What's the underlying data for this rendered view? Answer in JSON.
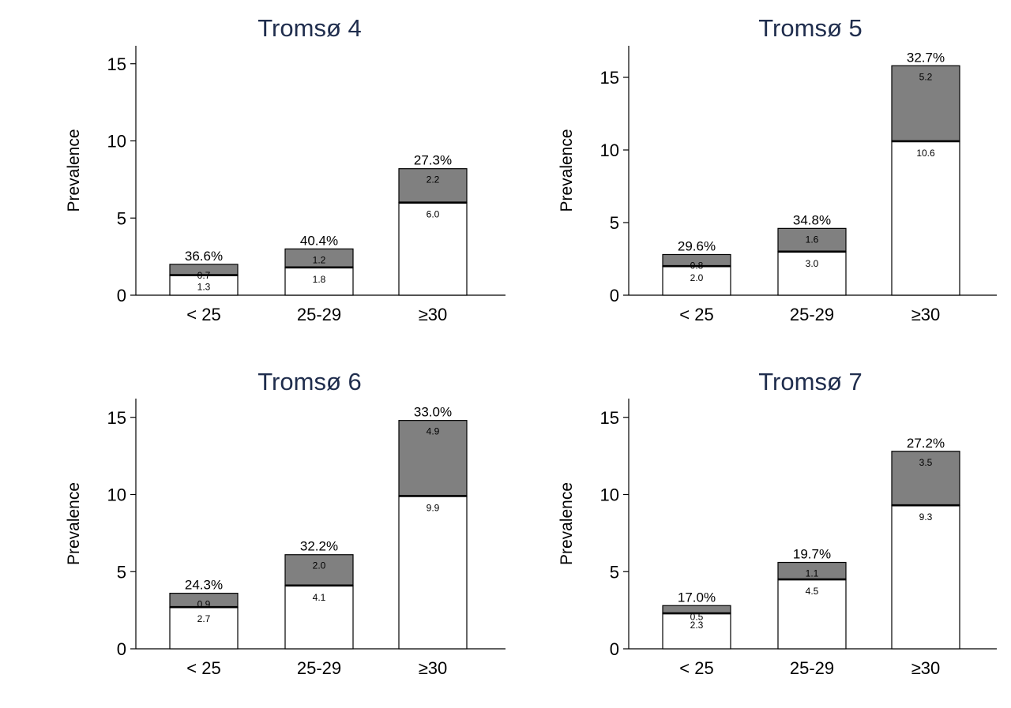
{
  "panels_colors": {
    "undiagnosed": "#808080",
    "diagnosed": "#ffffff",
    "outline": "#000000",
    "title": "#1f2d4d"
  },
  "chart_data": [
    {
      "type": "bar",
      "stacked": true,
      "title": "Tromsø 4",
      "ylabel": "Prevalence",
      "categories": [
        "< 25",
        "25-29",
        "≥30"
      ],
      "yticks": [
        0,
        5,
        10,
        15
      ],
      "ylim": [
        0,
        16.2
      ],
      "series": [
        {
          "values": [
            1.3,
            1.8,
            6.0
          ],
          "labels": [
            "1.3",
            "1.8",
            "6.0"
          ]
        },
        {
          "values": [
            0.7,
            1.2,
            2.2
          ],
          "labels": [
            "0.7",
            "1.2",
            "2.2"
          ]
        }
      ],
      "top_labels": [
        "36.6%",
        "40.4%",
        "27.3%"
      ]
    },
    {
      "type": "bar",
      "stacked": true,
      "title": "Tromsø 5",
      "ylabel": "Prevalence",
      "categories": [
        "< 25",
        "25-29",
        "≥30"
      ],
      "yticks": [
        0,
        5,
        10,
        15
      ],
      "ylim": [
        0,
        17.2
      ],
      "series": [
        {
          "values": [
            2.0,
            3.0,
            10.6
          ],
          "labels": [
            "2.0",
            "3.0",
            "10.6"
          ]
        },
        {
          "values": [
            0.8,
            1.6,
            5.2
          ],
          "labels": [
            "0.8",
            "1.6",
            "5.2"
          ]
        }
      ],
      "top_labels": [
        "29.6%",
        "34.8%",
        "32.7%"
      ]
    },
    {
      "type": "bar",
      "stacked": true,
      "title": "Tromsø 6",
      "ylabel": "Prevalence",
      "categories": [
        "< 25",
        "25-29",
        "≥30"
      ],
      "yticks": [
        0,
        5,
        10,
        15
      ],
      "ylim": [
        0,
        16.2
      ],
      "series": [
        {
          "values": [
            2.7,
            4.1,
            9.9
          ],
          "labels": [
            "2.7",
            "4.1",
            "9.9"
          ]
        },
        {
          "values": [
            0.9,
            2.0,
            4.9
          ],
          "labels": [
            "0.9",
            "2.0",
            "4.9"
          ]
        }
      ],
      "top_labels": [
        "24.3%",
        "32.2%",
        "33.0%"
      ]
    },
    {
      "type": "bar",
      "stacked": true,
      "title": "Tromsø 7",
      "ylabel": "Prevalence",
      "categories": [
        "< 25",
        "25-29",
        "≥30"
      ],
      "yticks": [
        0,
        5,
        10,
        15
      ],
      "ylim": [
        0,
        16.2
      ],
      "series": [
        {
          "values": [
            2.3,
            4.5,
            9.3
          ],
          "labels": [
            "2.3",
            "4.5",
            "9.3"
          ]
        },
        {
          "values": [
            0.5,
            1.1,
            3.5
          ],
          "labels": [
            "0.5",
            "1.1",
            "3.5"
          ]
        }
      ],
      "top_labels": [
        "17.0%",
        "19.7%",
        "27.2%"
      ]
    }
  ]
}
